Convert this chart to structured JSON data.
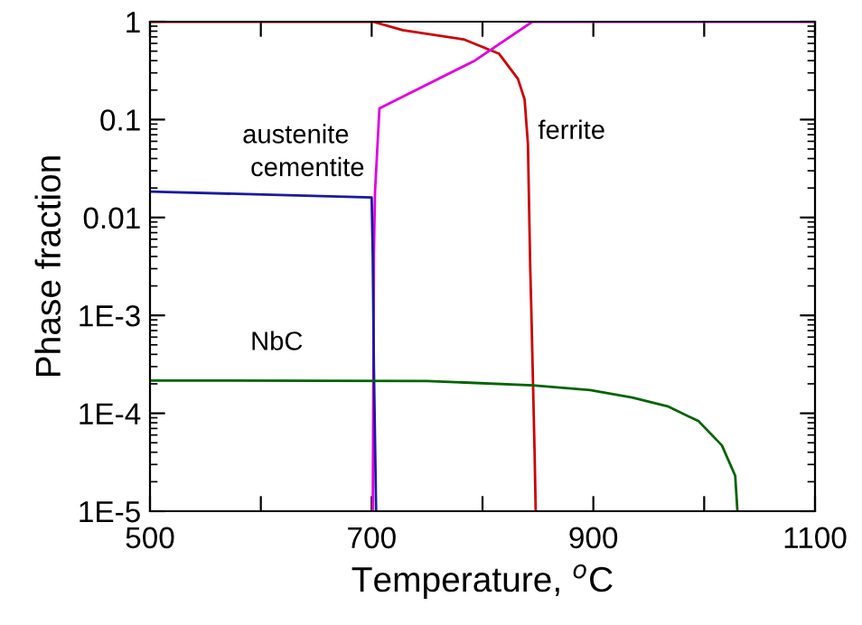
{
  "chart_data": {
    "type": "line",
    "xlabel": "Temperature, $^{o}$C",
    "ylabel": "Phase fraction",
    "log": "y",
    "xlim": [
      500,
      1100
    ],
    "ylim": [
      1e-05,
      1
    ],
    "xticks": [
      500,
      {
        "value": 600,
        "label": null
      },
      700,
      {
        "value": 800,
        "label": null
      },
      900,
      {
        "value": 1000,
        "label": null
      },
      1100
    ],
    "yticks": [
      {
        "value": 1e-05,
        "label": "1E-5"
      },
      {
        "value": 0.0001,
        "label": "1E-4"
      },
      {
        "value": 0.001,
        "label": "1E-3"
      },
      0.01,
      0.1,
      1
    ],
    "grid": false,
    "legend": false,
    "marker": "none",
    "line_style": "solid",
    "series": [
      {
        "name": "ferrite",
        "color": "#cc0000",
        "x": [
          500,
          701,
          728,
          783,
          815,
          832,
          838,
          841,
          843,
          844,
          847,
          848
        ],
        "values": [
          1,
          1,
          0.82,
          0.66,
          0.47,
          0.26,
          0.16,
          0.056,
          0.0033,
          0.0012,
          4e-05,
          1e-05
        ]
      },
      {
        "name": "austenite",
        "color": "#e000e0",
        "x": [
          701,
          702,
          703,
          707,
          793,
          845,
          1100
        ],
        "values": [
          1e-05,
          0.004,
          0.018,
          0.13,
          0.4,
          1,
          1
        ]
      },
      {
        "name": "cementite",
        "color": "#1a1aa0",
        "x": [
          500,
          700,
          701,
          702,
          704
        ],
        "values": [
          0.0184,
          0.016,
          0.004,
          0.0003,
          1e-05
        ]
      },
      {
        "name": "NbC",
        "color": "#006400",
        "x": [
          500,
          750,
          845,
          897,
          935,
          967,
          995,
          1016,
          1028,
          1030
        ],
        "values": [
          0.000216,
          0.000214,
          0.000193,
          0.000173,
          0.000145,
          0.000118,
          8.3e-05,
          4.7e-05,
          2.3e-05,
          1e-05
        ]
      }
    ]
  }
}
